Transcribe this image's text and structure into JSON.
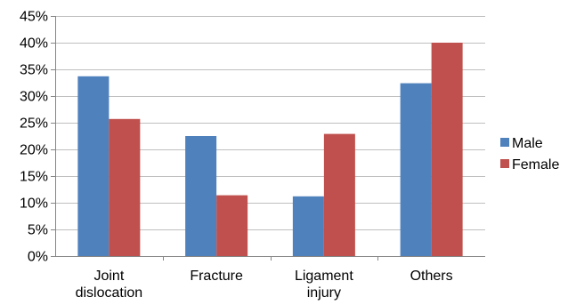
{
  "chart_data": {
    "type": "bar",
    "title": "",
    "xlabel": "",
    "ylabel": "",
    "categories": [
      [
        "Joint",
        "dislocation"
      ],
      [
        "Fracture"
      ],
      [
        "Ligament",
        "injury"
      ],
      [
        "Others"
      ]
    ],
    "series": [
      {
        "name": "Male",
        "color": "#4F81BD",
        "values": [
          33.7,
          22.5,
          11.2,
          32.4
        ]
      },
      {
        "name": "Female",
        "color": "#C0504D",
        "values": [
          25.7,
          11.4,
          22.9,
          40.0
        ]
      }
    ],
    "ylim": [
      0,
      45
    ],
    "yticks": [
      0,
      5,
      10,
      15,
      20,
      25,
      30,
      35,
      40,
      45
    ],
    "ytick_labels": [
      "0%",
      "5%",
      "10%",
      "15%",
      "20%",
      "25%",
      "30%",
      "35%",
      "40%",
      "45%"
    ],
    "grid": true,
    "gridline_color": "#BFBFBF",
    "axis_color": "#868686",
    "legend_position": "right"
  }
}
